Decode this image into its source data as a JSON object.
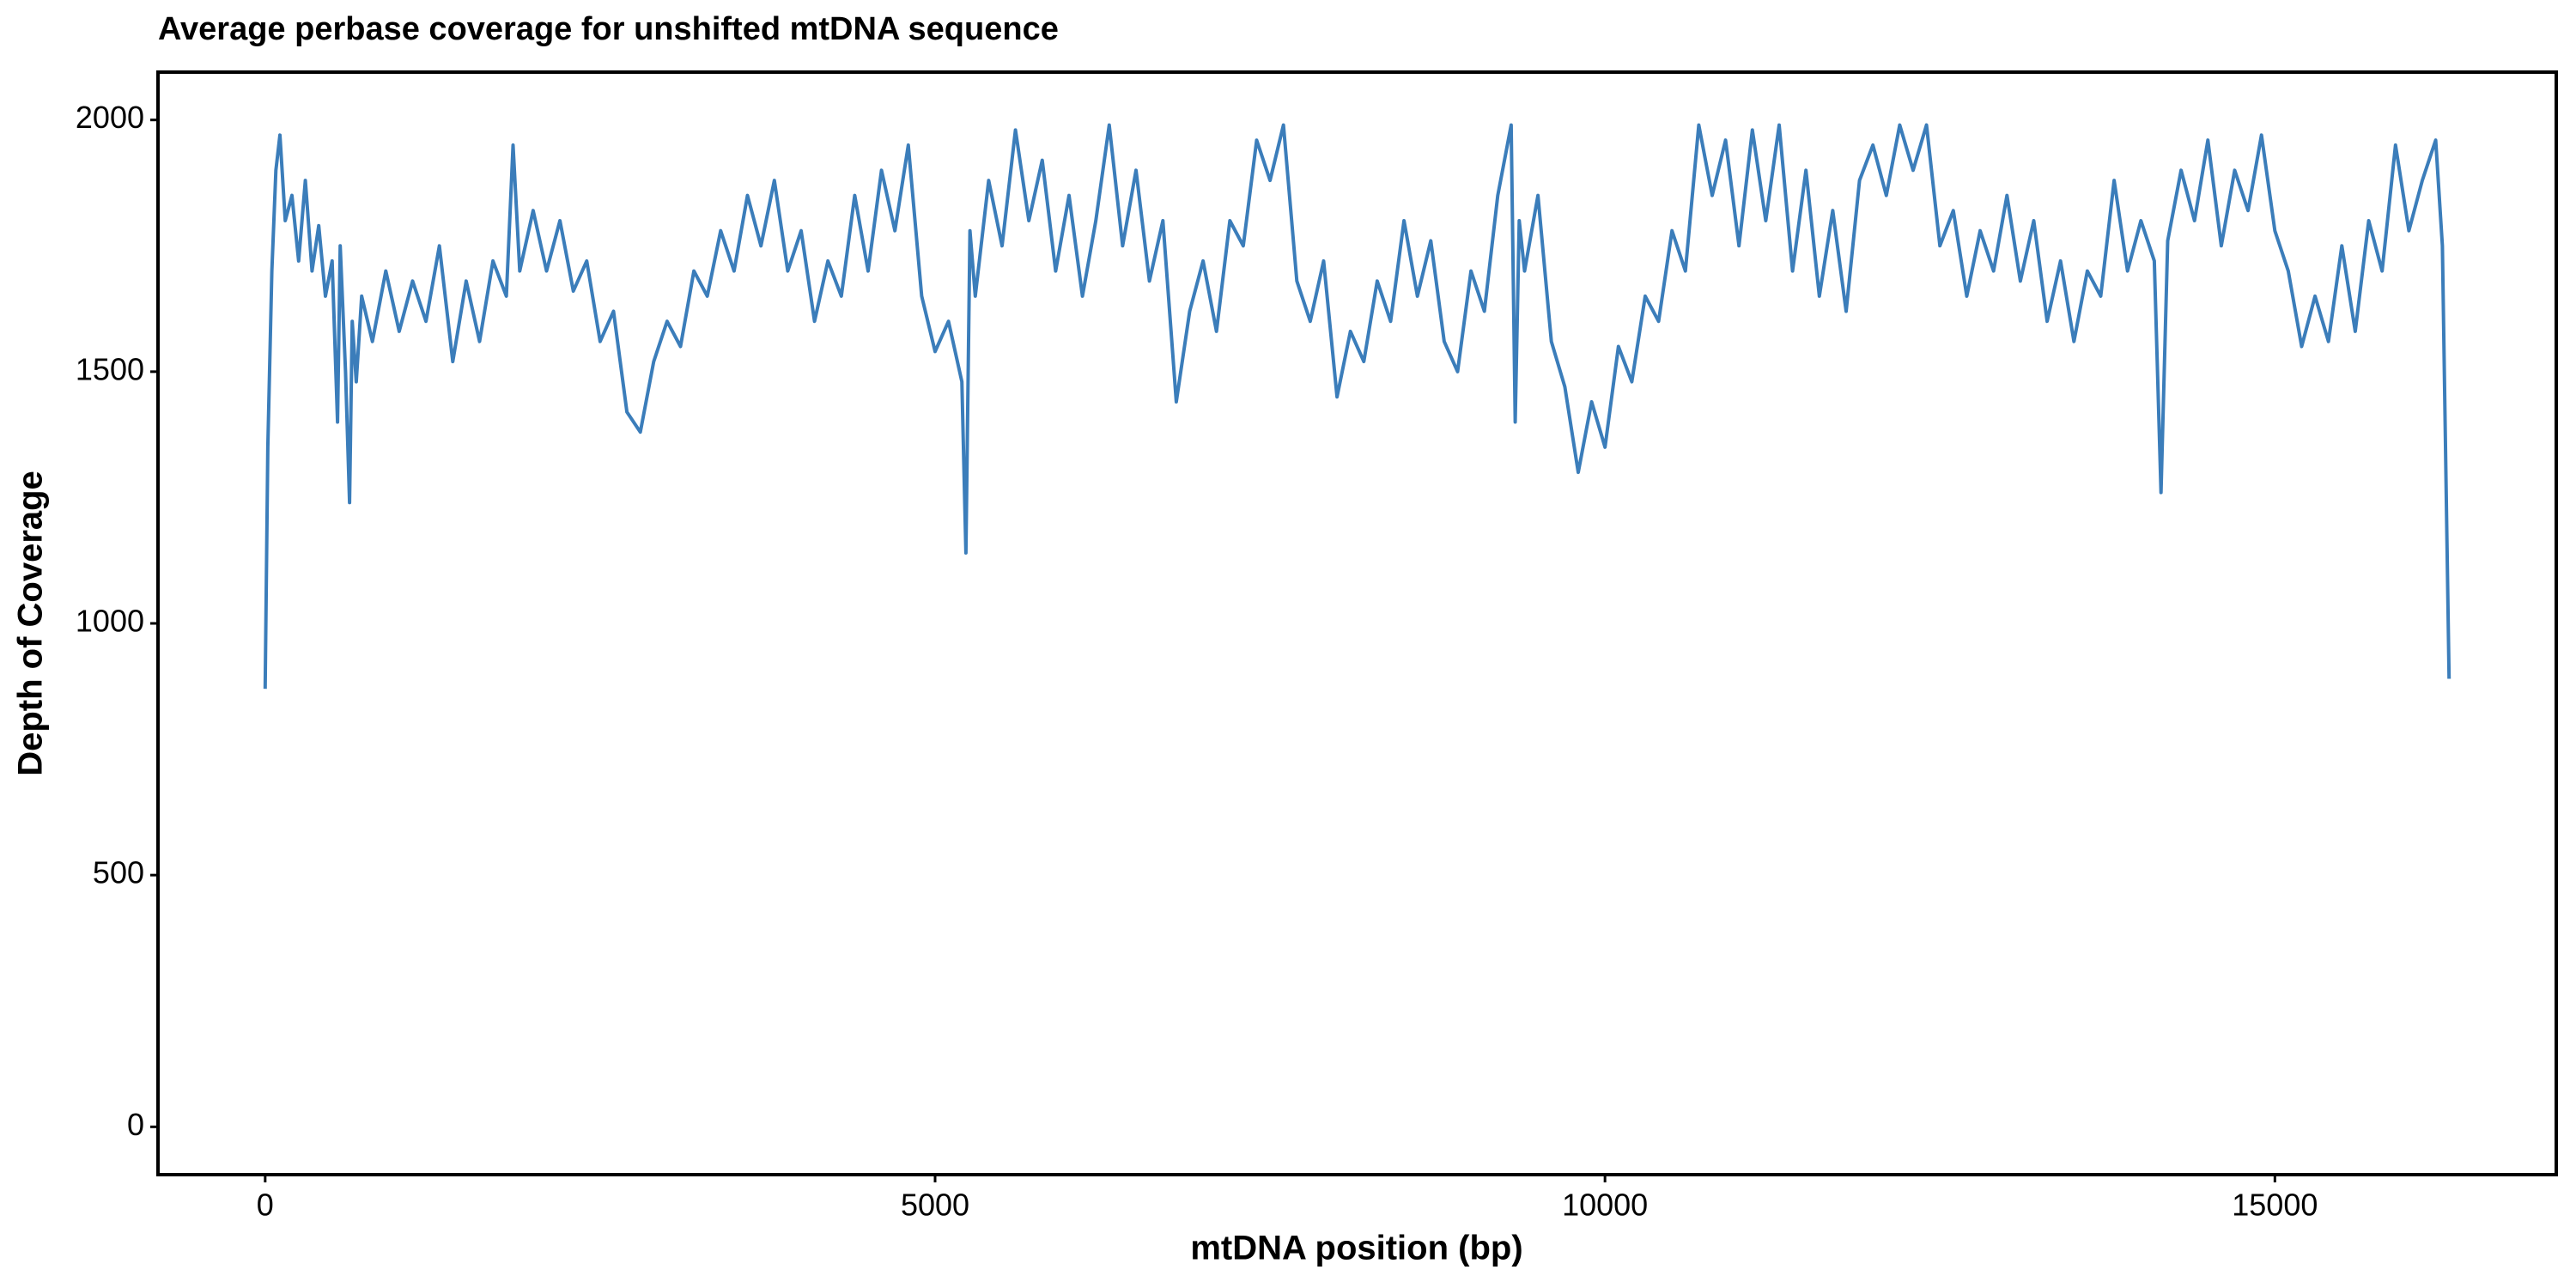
{
  "chart_data": {
    "type": "line",
    "title": "Average perbase coverage for unshifted mtDNA sequence",
    "x_label": "mtDNA position (bp)",
    "y_label": "Depth of Coverage",
    "color": "#3b7dba",
    "xlim": [
      -800,
      17100
    ],
    "xticks": [
      0,
      5000,
      10000,
      15000
    ],
    "ylim": [
      -95,
      2095
    ],
    "yticks": [
      0,
      500,
      1000,
      1500,
      2000
    ],
    "grid": false,
    "x": [
      0,
      20,
      50,
      80,
      110,
      150,
      200,
      250,
      300,
      350,
      400,
      450,
      500,
      540,
      560,
      600,
      630,
      650,
      680,
      720,
      800,
      900,
      1000,
      1100,
      1200,
      1300,
      1400,
      1500,
      1600,
      1700,
      1800,
      1850,
      1900,
      2000,
      2100,
      2200,
      2300,
      2400,
      2500,
      2600,
      2700,
      2800,
      2900,
      3000,
      3100,
      3200,
      3300,
      3400,
      3500,
      3600,
      3700,
      3800,
      3900,
      4000,
      4100,
      4200,
      4300,
      4400,
      4500,
      4600,
      4700,
      4800,
      4900,
      5000,
      5100,
      5200,
      5230,
      5260,
      5300,
      5400,
      5500,
      5600,
      5700,
      5800,
      5900,
      6000,
      6100,
      6200,
      6300,
      6400,
      6500,
      6600,
      6700,
      6800,
      6900,
      7000,
      7100,
      7200,
      7300,
      7400,
      7500,
      7600,
      7700,
      7800,
      7900,
      8000,
      8100,
      8200,
      8300,
      8400,
      8500,
      8600,
      8700,
      8800,
      8900,
      9000,
      9100,
      9200,
      9300,
      9330,
      9360,
      9400,
      9500,
      9600,
      9700,
      9800,
      9900,
      10000,
      10100,
      10200,
      10300,
      10400,
      10500,
      10600,
      10700,
      10800,
      10900,
      11000,
      11100,
      11200,
      11300,
      11400,
      11500,
      11600,
      11700,
      11800,
      11900,
      12000,
      12100,
      12200,
      12300,
      12400,
      12500,
      12600,
      12700,
      12800,
      12900,
      13000,
      13100,
      13200,
      13300,
      13400,
      13500,
      13600,
      13700,
      13800,
      13900,
      14000,
      14100,
      14150,
      14200,
      14300,
      14400,
      14500,
      14600,
      14700,
      14800,
      14900,
      15000,
      15100,
      15200,
      15300,
      15400,
      15500,
      15600,
      15700,
      15800,
      15900,
      16000,
      16100,
      16200,
      16250,
      16300
    ],
    "values": [
      870,
      1350,
      1700,
      1900,
      1970,
      1800,
      1850,
      1720,
      1880,
      1700,
      1790,
      1650,
      1720,
      1400,
      1750,
      1500,
      1240,
      1600,
      1480,
      1650,
      1560,
      1700,
      1580,
      1680,
      1600,
      1750,
      1520,
      1680,
      1560,
      1720,
      1650,
      1950,
      1700,
      1820,
      1700,
      1800,
      1660,
      1720,
      1560,
      1620,
      1420,
      1380,
      1520,
      1600,
      1550,
      1700,
      1650,
      1780,
      1700,
      1850,
      1750,
      1880,
      1700,
      1780,
      1600,
      1720,
      1650,
      1850,
      1700,
      1900,
      1780,
      1950,
      1650,
      1540,
      1600,
      1480,
      1140,
      1780,
      1650,
      1880,
      1750,
      1980,
      1800,
      1920,
      1700,
      1850,
      1650,
      1800,
      1990,
      1750,
      1900,
      1680,
      1800,
      1440,
      1620,
      1720,
      1580,
      1800,
      1750,
      1960,
      1880,
      1990,
      1680,
      1600,
      1720,
      1450,
      1580,
      1520,
      1680,
      1600,
      1800,
      1650,
      1760,
      1560,
      1500,
      1700,
      1620,
      1850,
      1990,
      1400,
      1800,
      1700,
      1850,
      1560,
      1470,
      1300,
      1440,
      1350,
      1550,
      1480,
      1650,
      1600,
      1780,
      1700,
      1990,
      1850,
      1960,
      1750,
      1980,
      1800,
      1990,
      1700,
      1900,
      1650,
      1820,
      1620,
      1880,
      1950,
      1850,
      1990,
      1900,
      1990,
      1750,
      1820,
      1650,
      1780,
      1700,
      1850,
      1680,
      1800,
      1600,
      1720,
      1560,
      1700,
      1650,
      1880,
      1700,
      1800,
      1720,
      1260,
      1760,
      1900,
      1800,
      1960,
      1750,
      1900,
      1820,
      1970,
      1780,
      1700,
      1550,
      1650,
      1560,
      1750,
      1580,
      1800,
      1700,
      1950,
      1780,
      1880,
      1960,
      1750,
      890
    ]
  }
}
